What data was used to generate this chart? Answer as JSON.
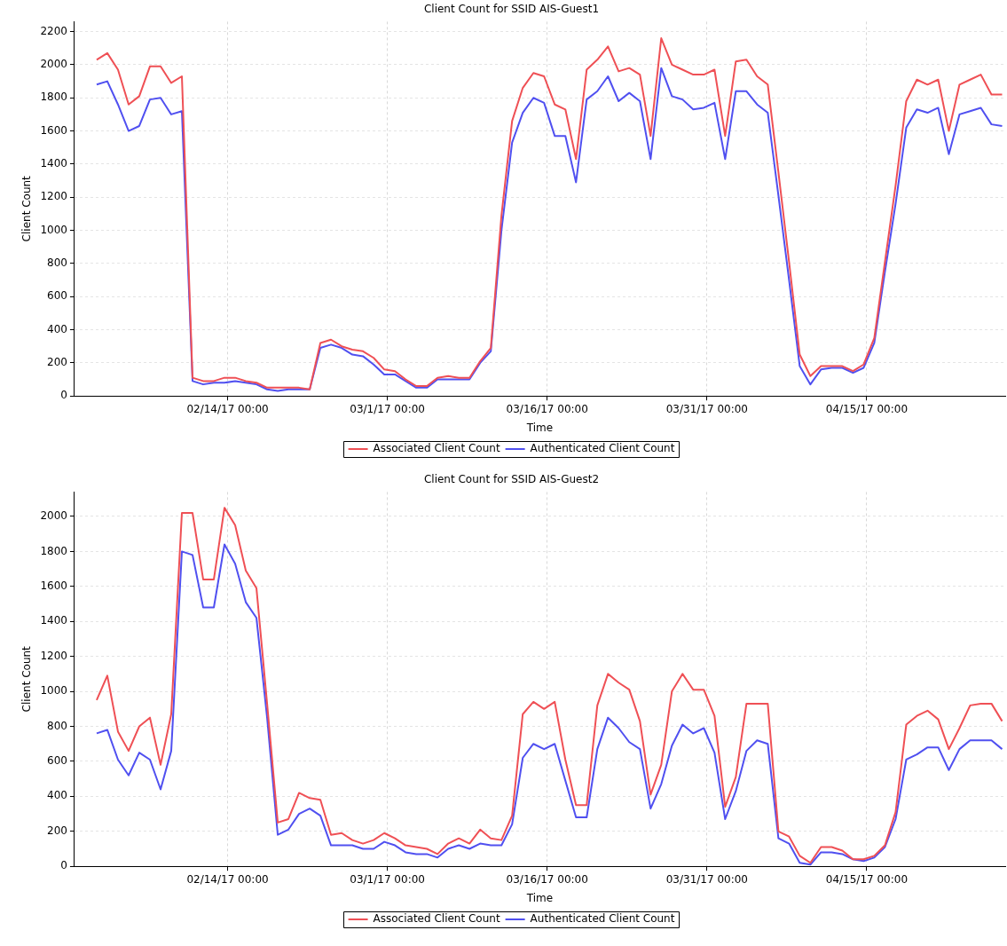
{
  "chart_data": [
    {
      "type": "line",
      "title": "Client Count for SSID AIS-Guest1",
      "xlabel": "Time",
      "ylabel": "Client Count",
      "x": [
        "2017-02-01T17:00",
        "2017-02-02T17:00",
        "2017-02-03T17:00",
        "2017-02-04T17:00",
        "2017-02-05T17:00",
        "2017-02-06T17:00",
        "2017-02-07T17:00",
        "2017-02-08T17:00",
        "2017-02-09T17:00",
        "2017-02-10T17:00",
        "2017-02-11T17:00",
        "2017-02-12T17:00",
        "2017-02-13T17:00",
        "2017-02-14T17:00",
        "2017-02-15T17:00",
        "2017-02-16T17:00",
        "2017-02-17T17:00",
        "2017-02-18T17:00",
        "2017-02-19T17:00",
        "2017-02-20T17:00",
        "2017-02-21T17:00",
        "2017-02-22T17:00",
        "2017-02-23T17:00",
        "2017-02-24T17:00",
        "2017-02-25T17:00",
        "2017-02-26T17:00",
        "2017-02-27T17:00",
        "2017-02-28T17:00",
        "2017-03-01T17:00",
        "2017-03-02T17:00",
        "2017-03-03T17:00",
        "2017-03-04T17:00",
        "2017-03-05T17:00",
        "2017-03-06T17:00",
        "2017-03-07T17:00",
        "2017-03-08T17:00",
        "2017-03-09T17:00",
        "2017-03-10T17:00",
        "2017-03-11T17:00",
        "2017-03-12T17:00",
        "2017-03-13T17:00",
        "2017-03-14T17:00",
        "2017-03-15T17:00",
        "2017-03-16T17:00",
        "2017-03-17T17:00",
        "2017-03-18T17:00",
        "2017-03-19T17:00",
        "2017-03-20T17:00",
        "2017-03-21T17:00",
        "2017-03-22T17:00",
        "2017-03-23T17:00",
        "2017-03-24T17:00",
        "2017-03-25T17:00",
        "2017-03-26T17:00",
        "2017-03-27T17:00",
        "2017-03-28T17:00",
        "2017-03-29T17:00",
        "2017-03-30T17:00",
        "2017-03-31T17:00",
        "2017-04-01T17:00",
        "2017-04-02T17:00",
        "2017-04-03T17:00",
        "2017-04-04T17:00",
        "2017-04-05T17:00",
        "2017-04-06T17:00",
        "2017-04-07T17:00",
        "2017-04-08T17:00",
        "2017-04-09T17:00",
        "2017-04-10T17:00",
        "2017-04-11T17:00",
        "2017-04-12T17:00",
        "2017-04-13T17:00",
        "2017-04-14T17:00",
        "2017-04-15T17:00",
        "2017-04-16T17:00",
        "2017-04-17T17:00",
        "2017-04-18T17:00",
        "2017-04-19T17:00",
        "2017-04-20T17:00",
        "2017-04-21T17:00",
        "2017-04-22T17:00",
        "2017-04-23T17:00",
        "2017-04-24T17:00",
        "2017-04-25T17:00",
        "2017-04-26T17:00",
        "2017-04-27T17:00"
      ],
      "series": [
        {
          "name": "Associated Client Count",
          "color": "#ef5055",
          "values": [
            2030,
            2070,
            1970,
            1760,
            1810,
            1990,
            1990,
            1890,
            1930,
            110,
            90,
            90,
            110,
            110,
            90,
            80,
            50,
            50,
            50,
            50,
            40,
            320,
            340,
            300,
            280,
            270,
            230,
            160,
            150,
            100,
            60,
            60,
            110,
            120,
            110,
            110,
            210,
            290,
            1090,
            1660,
            1860,
            1950,
            1930,
            1760,
            1730,
            1430,
            1970,
            2030,
            2110,
            1960,
            1980,
            1940,
            1570,
            2160,
            2000,
            1970,
            1940,
            1940,
            1970,
            1570,
            2020,
            2030,
            1930,
            1880,
            1350,
            810,
            250,
            120,
            180,
            180,
            180,
            150,
            190,
            350,
            810,
            1270,
            1780,
            1910,
            1880,
            1910,
            1600,
            1880,
            1910,
            1940,
            1820,
            1820
          ]
        },
        {
          "name": "Authenticated Client Count",
          "color": "#5050f0",
          "values": [
            1880,
            1900,
            1760,
            1600,
            1630,
            1790,
            1800,
            1700,
            1720,
            90,
            70,
            80,
            80,
            90,
            80,
            70,
            40,
            30,
            40,
            40,
            40,
            290,
            310,
            290,
            250,
            240,
            190,
            130,
            130,
            90,
            50,
            50,
            100,
            100,
            100,
            100,
            200,
            270,
            1000,
            1530,
            1710,
            1800,
            1770,
            1570,
            1570,
            1290,
            1790,
            1840,
            1930,
            1780,
            1830,
            1780,
            1430,
            1980,
            1810,
            1790,
            1730,
            1740,
            1770,
            1430,
            1840,
            1840,
            1760,
            1710,
            1210,
            700,
            180,
            70,
            160,
            170,
            170,
            140,
            170,
            320,
            750,
            1160,
            1620,
            1730,
            1710,
            1740,
            1460,
            1700,
            1720,
            1740,
            1640,
            1630
          ]
        }
      ],
      "xlim": [
        "2017-01-30T15:00",
        "2017-04-28T00:00"
      ],
      "xticks": [
        {
          "value": "2017-02-14T00:00",
          "label": "02/14/17 00:00"
        },
        {
          "value": "2017-03-01T00:00",
          "label": "03/1/17 00:00"
        },
        {
          "value": "2017-03-16T00:00",
          "label": "03/16/17 00:00"
        },
        {
          "value": "2017-03-31T00:00",
          "label": "03/31/17 00:00"
        },
        {
          "value": "2017-04-15T00:00",
          "label": "04/15/17 00:00"
        }
      ],
      "ylim": [
        0,
        2260
      ],
      "yticks": [
        0,
        200,
        400,
        600,
        800,
        1000,
        1200,
        1400,
        1600,
        1800,
        2000,
        2200
      ],
      "grid": true,
      "legend": "bottom",
      "marker": "none",
      "line_style": "solid"
    },
    {
      "type": "line",
      "title": "Client Count for SSID AIS-Guest2",
      "xlabel": "Time",
      "ylabel": "Client Count",
      "x": [
        "2017-02-01T17:00",
        "2017-02-02T17:00",
        "2017-02-03T17:00",
        "2017-02-04T17:00",
        "2017-02-05T17:00",
        "2017-02-06T17:00",
        "2017-02-07T17:00",
        "2017-02-08T17:00",
        "2017-02-09T17:00",
        "2017-02-10T17:00",
        "2017-02-11T17:00",
        "2017-02-12T17:00",
        "2017-02-13T17:00",
        "2017-02-14T17:00",
        "2017-02-15T17:00",
        "2017-02-16T17:00",
        "2017-02-17T17:00",
        "2017-02-18T17:00",
        "2017-02-19T17:00",
        "2017-02-20T17:00",
        "2017-02-21T17:00",
        "2017-02-22T17:00",
        "2017-02-23T17:00",
        "2017-02-24T17:00",
        "2017-02-25T17:00",
        "2017-02-26T17:00",
        "2017-02-27T17:00",
        "2017-02-28T17:00",
        "2017-03-01T17:00",
        "2017-03-02T17:00",
        "2017-03-03T17:00",
        "2017-03-04T17:00",
        "2017-03-05T17:00",
        "2017-03-06T17:00",
        "2017-03-07T17:00",
        "2017-03-08T17:00",
        "2017-03-09T17:00",
        "2017-03-10T17:00",
        "2017-03-11T17:00",
        "2017-03-12T17:00",
        "2017-03-13T17:00",
        "2017-03-14T17:00",
        "2017-03-15T17:00",
        "2017-03-16T17:00",
        "2017-03-17T17:00",
        "2017-03-18T17:00",
        "2017-03-19T17:00",
        "2017-03-20T17:00",
        "2017-03-21T17:00",
        "2017-03-22T17:00",
        "2017-03-23T17:00",
        "2017-03-24T17:00",
        "2017-03-25T17:00",
        "2017-03-26T17:00",
        "2017-03-27T17:00",
        "2017-03-28T17:00",
        "2017-03-29T17:00",
        "2017-03-30T17:00",
        "2017-03-31T17:00",
        "2017-04-01T17:00",
        "2017-04-02T17:00",
        "2017-04-03T17:00",
        "2017-04-04T17:00",
        "2017-04-05T17:00",
        "2017-04-06T17:00",
        "2017-04-07T17:00",
        "2017-04-08T17:00",
        "2017-04-09T17:00",
        "2017-04-10T17:00",
        "2017-04-11T17:00",
        "2017-04-12T17:00",
        "2017-04-13T17:00",
        "2017-04-14T17:00",
        "2017-04-15T17:00",
        "2017-04-16T17:00",
        "2017-04-17T17:00",
        "2017-04-18T17:00",
        "2017-04-19T17:00",
        "2017-04-20T17:00",
        "2017-04-21T17:00",
        "2017-04-22T17:00",
        "2017-04-23T17:00",
        "2017-04-24T17:00",
        "2017-04-25T17:00",
        "2017-04-26T17:00",
        "2017-04-27T17:00"
      ],
      "series": [
        {
          "name": "Associated Client Count",
          "color": "#ef5055",
          "values": [
            950,
            1090,
            770,
            660,
            800,
            850,
            580,
            870,
            2020,
            2020,
            1640,
            1640,
            2050,
            1950,
            1690,
            1590,
            930,
            250,
            270,
            420,
            390,
            380,
            180,
            190,
            150,
            130,
            150,
            190,
            160,
            120,
            110,
            100,
            70,
            130,
            160,
            130,
            210,
            160,
            150,
            290,
            870,
            940,
            900,
            940,
            610,
            350,
            350,
            920,
            1100,
            1050,
            1010,
            830,
            410,
            580,
            1000,
            1100,
            1010,
            1010,
            860,
            340,
            510,
            930,
            930,
            930,
            200,
            170,
            60,
            20,
            110,
            110,
            90,
            40,
            40,
            60,
            120,
            310,
            810,
            860,
            890,
            840,
            670,
            790,
            920,
            930,
            930,
            830
          ]
        },
        {
          "name": "Authenticated Client Count",
          "color": "#5050f0",
          "values": [
            760,
            780,
            610,
            520,
            650,
            610,
            440,
            660,
            1800,
            1780,
            1480,
            1480,
            1840,
            1730,
            1510,
            1420,
            850,
            180,
            210,
            300,
            330,
            290,
            120,
            120,
            120,
            100,
            100,
            140,
            120,
            80,
            70,
            70,
            50,
            100,
            120,
            100,
            130,
            120,
            120,
            240,
            620,
            700,
            670,
            700,
            490,
            280,
            280,
            670,
            850,
            790,
            710,
            670,
            330,
            470,
            690,
            810,
            760,
            790,
            650,
            270,
            430,
            660,
            720,
            700,
            160,
            130,
            20,
            10,
            80,
            80,
            70,
            40,
            30,
            50,
            110,
            270,
            610,
            640,
            680,
            680,
            550,
            670,
            720,
            720,
            720,
            670
          ]
        }
      ],
      "xlim": [
        "2017-01-30T15:00",
        "2017-04-28T00:00"
      ],
      "xticks": [
        {
          "value": "2017-02-14T00:00",
          "label": "02/14/17 00:00"
        },
        {
          "value": "2017-03-01T00:00",
          "label": "03/1/17 00:00"
        },
        {
          "value": "2017-03-16T00:00",
          "label": "03/16/17 00:00"
        },
        {
          "value": "2017-03-31T00:00",
          "label": "03/31/17 00:00"
        },
        {
          "value": "2017-04-15T00:00",
          "label": "04/15/17 00:00"
        }
      ],
      "ylim": [
        0,
        2140
      ],
      "yticks": [
        0,
        200,
        400,
        600,
        800,
        1000,
        1200,
        1400,
        1600,
        1800,
        2000
      ],
      "grid": true,
      "legend": "bottom",
      "marker": "none",
      "line_style": "solid"
    }
  ]
}
